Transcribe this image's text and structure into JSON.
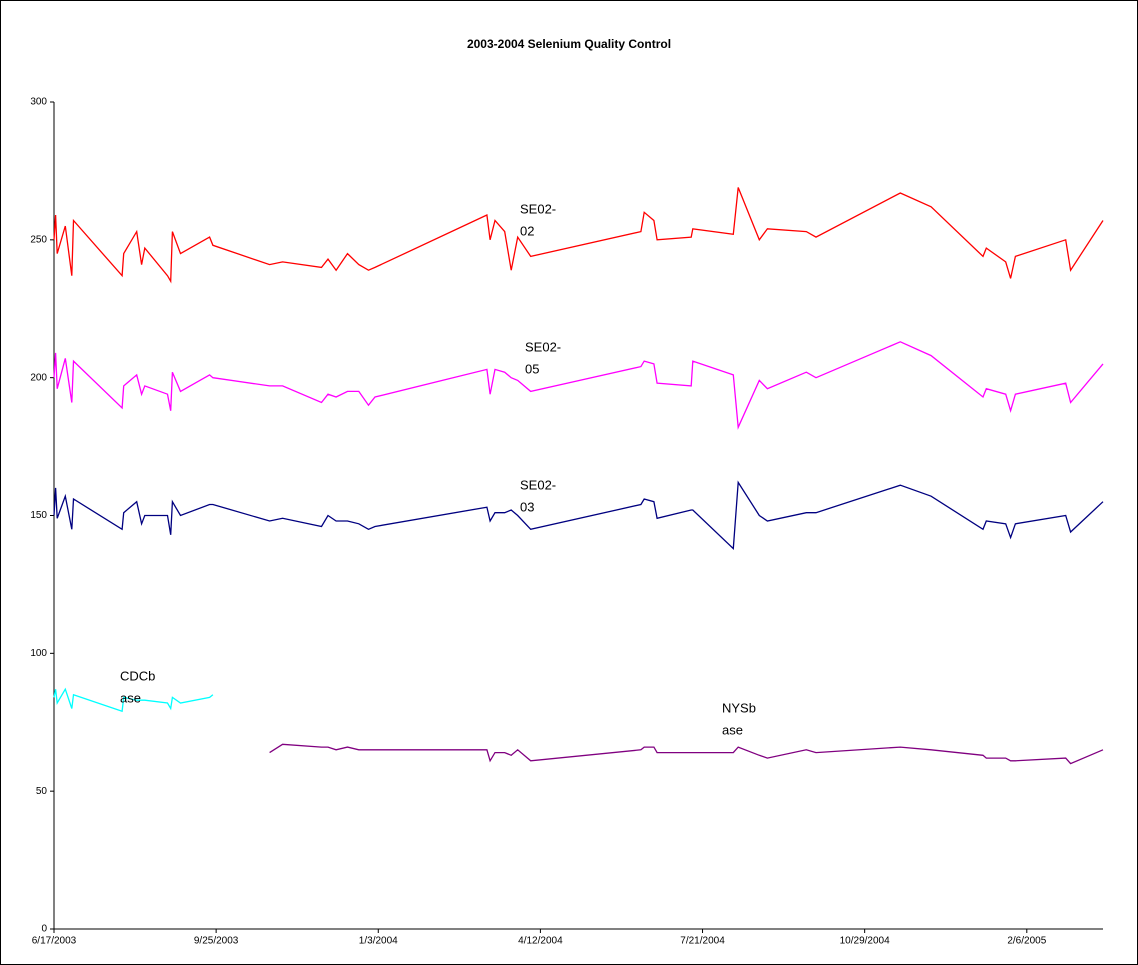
{
  "chart_data": {
    "type": "line",
    "title": "2003-2004 Selenium Quality Control",
    "x": [
      "2003-06-17",
      "2003-06-18",
      "2003-06-19",
      "2003-06-24",
      "2003-06-28",
      "2003-06-29",
      "2003-07-29",
      "2003-07-30",
      "2003-08-07",
      "2003-08-10",
      "2003-08-12",
      "2003-08-26",
      "2003-08-28",
      "2003-08-29",
      "2003-09-03",
      "2003-09-21",
      "2003-09-23",
      "2003-10-28",
      "2003-11-05",
      "2003-11-29",
      "2003-12-03",
      "2003-12-08",
      "2003-12-15",
      "2003-12-22",
      "2003-12-28",
      "2004-01-01",
      "2004-03-10",
      "2004-03-12",
      "2004-03-15",
      "2004-03-21",
      "2004-03-25",
      "2004-03-29",
      "2004-04-06",
      "2004-06-13",
      "2004-06-15",
      "2004-06-21",
      "2004-06-23",
      "2004-07-14",
      "2004-07-15",
      "2004-08-09",
      "2004-08-12",
      "2004-08-25",
      "2004-08-30",
      "2004-09-23",
      "2004-09-29",
      "2004-11-20",
      "2004-12-09",
      "2005-01-10",
      "2005-01-12",
      "2005-01-24",
      "2005-01-27",
      "2005-01-30",
      "2005-03-02",
      "2005-03-05",
      "2005-03-25"
    ],
    "series": [
      {
        "label": [
          "SE02-",
          "02"
        ],
        "color": "#ff0000",
        "values": [
          250,
          259,
          245,
          255,
          237,
          257,
          237,
          245,
          253,
          241,
          247,
          237,
          235,
          253,
          245,
          251,
          248,
          241,
          242,
          240,
          243,
          239,
          245,
          241,
          239,
          240,
          259,
          250,
          257,
          253,
          239,
          251,
          244,
          253,
          260,
          257,
          250,
          251,
          254,
          252,
          269,
          250,
          254,
          253,
          251,
          267,
          262,
          244,
          247,
          242,
          236,
          244,
          250,
          239,
          257
        ]
      },
      {
        "label": [
          "SE02-",
          "05"
        ],
        "color": "#ff00ff",
        "values": [
          200,
          209,
          196,
          207,
          191,
          206,
          189,
          197,
          201,
          194,
          197,
          194,
          188,
          202,
          195,
          201,
          200,
          197,
          197,
          191,
          194,
          193,
          195,
          195,
          190,
          193,
          203,
          194,
          203,
          202,
          200,
          199,
          195,
          204,
          206,
          205,
          198,
          197,
          206,
          201,
          182,
          199,
          196,
          202,
          200,
          213,
          208,
          193,
          196,
          194,
          188,
          194,
          198,
          191,
          205
        ]
      },
      {
        "label": [
          "SE02-",
          "03"
        ],
        "color": "#000080",
        "values": [
          150,
          160,
          149,
          157,
          145,
          156,
          145,
          151,
          155,
          147,
          150,
          150,
          143,
          155,
          150,
          154,
          154,
          148,
          149,
          146,
          150,
          148,
          148,
          147,
          145,
          146,
          153,
          148,
          151,
          151,
          152,
          150,
          145,
          154,
          156,
          155,
          149,
          152,
          152,
          138,
          162,
          150,
          148,
          151,
          151,
          161,
          157,
          145,
          148,
          147,
          142,
          147,
          150,
          144,
          155
        ]
      },
      {
        "label": [
          "CDCb",
          "ase"
        ],
        "color": "#00ffff",
        "values": [
          84,
          87,
          82,
          87,
          80,
          85,
          79,
          84,
          83,
          83,
          83,
          82,
          80,
          84,
          82,
          84,
          85,
          null,
          null,
          null,
          null,
          null,
          null,
          null,
          null,
          null,
          null,
          null,
          null,
          null,
          null,
          null,
          null,
          null,
          null,
          null,
          null,
          null,
          null,
          null,
          null,
          null,
          null,
          null,
          null,
          null,
          null,
          null,
          null,
          null,
          null,
          null,
          null,
          null,
          null
        ]
      },
      {
        "label": [
          "NYSb",
          "ase"
        ],
        "color": "#800080",
        "values": [
          null,
          null,
          null,
          null,
          null,
          null,
          null,
          null,
          null,
          null,
          null,
          null,
          null,
          null,
          null,
          null,
          null,
          64,
          67,
          66,
          66,
          65,
          66,
          65,
          65,
          65,
          65,
          61,
          64,
          64,
          63,
          65,
          61,
          65,
          66,
          66,
          64,
          64,
          64,
          64,
          66,
          63,
          62,
          65,
          64,
          66,
          65,
          63,
          62,
          62,
          61,
          61,
          62,
          60,
          65
        ]
      }
    ],
    "xlim": [
      "2003-06-17",
      "2005-03-25"
    ],
    "xticks": [
      {
        "value": "2003-06-17",
        "label": "6/17/2003"
      },
      {
        "value": "2003-09-25",
        "label": "9/25/2003"
      },
      {
        "value": "2004-01-03",
        "label": "1/3/2004"
      },
      {
        "value": "2004-04-12",
        "label": "4/12/2004"
      },
      {
        "value": "2004-07-21",
        "label": "7/21/2004"
      },
      {
        "value": "2004-10-29",
        "label": "10/29/2004"
      },
      {
        "value": "2005-02-06",
        "label": "2/6/2005"
      }
    ],
    "ylim": [
      0,
      300
    ],
    "yticks": [
      0,
      50,
      100,
      150,
      200,
      250,
      300
    ],
    "grid": false
  }
}
